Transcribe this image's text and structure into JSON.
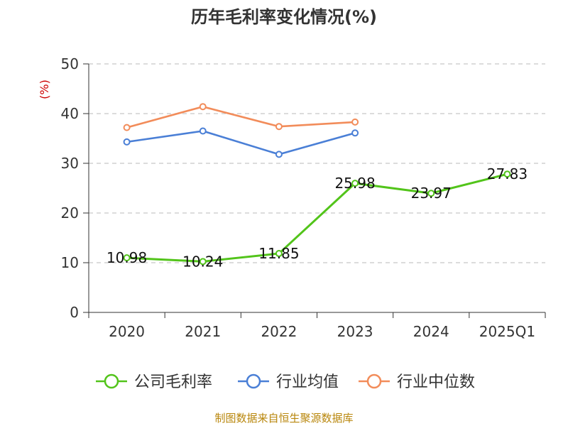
{
  "chart_data": {
    "type": "line",
    "title": "历年毛利率变化情况(%)",
    "ylabel": "(%)",
    "categories": [
      "2020",
      "2021",
      "2022",
      "2023",
      "2024",
      "2025Q1"
    ],
    "y_ticks": [
      "0",
      "10",
      "20",
      "30",
      "40",
      "50"
    ],
    "ylim": [
      0,
      50
    ],
    "grid": true,
    "legend_position": "bottom",
    "series": [
      {
        "name": "公司毛利率",
        "color": "#52c41a",
        "values": [
          10.98,
          10.24,
          11.85,
          25.98,
          23.97,
          27.83
        ],
        "labels": [
          "10.98",
          "10.24",
          "11.85",
          "25.98",
          "23.97",
          "27.83"
        ]
      },
      {
        "name": "行业均值",
        "color": "#4a7fd6",
        "values": [
          34.3,
          36.5,
          31.8,
          36.1,
          null,
          null
        ]
      },
      {
        "name": "行业中位数",
        "color": "#f28c5a",
        "values": [
          37.2,
          41.4,
          37.4,
          38.3,
          null,
          null
        ]
      }
    ]
  },
  "source": "制图数据来自恒生聚源数据库"
}
